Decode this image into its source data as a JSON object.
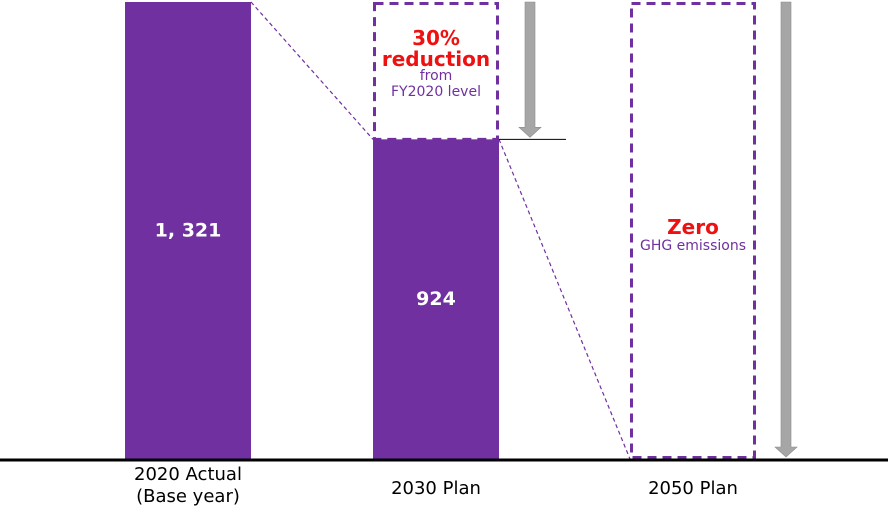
{
  "chart_data": {
    "type": "bar",
    "categories": [
      "2020 Actual (Base year)",
      "2030 Plan",
      "2050 Plan"
    ],
    "category_label_lines": [
      [
        "2020 Actual",
        "(Base year)"
      ],
      [
        "2030 Plan"
      ],
      [
        "2050 Plan"
      ]
    ],
    "values": [
      1321,
      924,
      0
    ],
    "value_labels": [
      "1, 321",
      "924",
      ""
    ],
    "ylim": [
      0,
      1321
    ],
    "grid": false,
    "annotations": {
      "reduction_2030": {
        "line1": "30%",
        "line2": "reduction",
        "line3": "from",
        "line4": "FY2020 level"
      },
      "target_2050": {
        "line1": "Zero",
        "line2": "GHG emissions"
      }
    }
  },
  "colors": {
    "bar": "#7030a0",
    "dashed_outline": "#7030a0",
    "arrow": "#a6a6a6",
    "annotation_highlight": "#ee1111",
    "annotation_text": "#7030a0",
    "baseline": "#000000"
  }
}
